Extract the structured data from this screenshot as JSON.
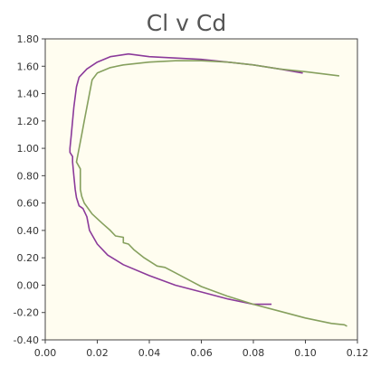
{
  "chart_data": {
    "type": "line",
    "title": "Cl v Cd",
    "xlabel": "",
    "ylabel": "",
    "xlim": [
      0,
      0.12
    ],
    "ylim": [
      -0.4,
      1.8
    ],
    "x_ticks": [
      "0.00",
      "0.02",
      "0.04",
      "0.06",
      "0.08",
      "0.10",
      "0.12"
    ],
    "y_ticks": [
      "1.80",
      "1.60",
      "1.40",
      "1.20",
      "1.00",
      "0.80",
      "0.60",
      "0.40",
      "0.20",
      "0.00",
      "-0.20",
      "-0.40"
    ],
    "grid": false,
    "legend": "none",
    "series": [
      {
        "color": "#8b3a9a",
        "points": [
          [
            0.087,
            -0.14
          ],
          [
            0.08,
            -0.14
          ],
          [
            0.07,
            -0.1
          ],
          [
            0.06,
            -0.05
          ],
          [
            0.05,
            0.0
          ],
          [
            0.04,
            0.07
          ],
          [
            0.03,
            0.15
          ],
          [
            0.024,
            0.22
          ],
          [
            0.02,
            0.3
          ],
          [
            0.017,
            0.4
          ],
          [
            0.016,
            0.5
          ],
          [
            0.0145,
            0.56
          ],
          [
            0.013,
            0.58
          ],
          [
            0.012,
            0.64
          ],
          [
            0.0115,
            0.7
          ],
          [
            0.011,
            0.8
          ],
          [
            0.0105,
            0.9
          ],
          [
            0.0105,
            0.94
          ],
          [
            0.0095,
            0.97
          ],
          [
            0.0095,
            1.0
          ],
          [
            0.01,
            1.1
          ],
          [
            0.011,
            1.3
          ],
          [
            0.012,
            1.45
          ],
          [
            0.013,
            1.52
          ],
          [
            0.016,
            1.58
          ],
          [
            0.02,
            1.63
          ],
          [
            0.025,
            1.67
          ],
          [
            0.032,
            1.69
          ],
          [
            0.04,
            1.67
          ],
          [
            0.05,
            1.66
          ],
          [
            0.06,
            1.65
          ],
          [
            0.07,
            1.63
          ],
          [
            0.08,
            1.61
          ],
          [
            0.09,
            1.58
          ],
          [
            0.099,
            1.55
          ]
        ]
      },
      {
        "color": "#86a05e",
        "points": [
          [
            0.116,
            -0.3
          ],
          [
            0.115,
            -0.29
          ],
          [
            0.11,
            -0.28
          ],
          [
            0.1,
            -0.24
          ],
          [
            0.09,
            -0.19
          ],
          [
            0.08,
            -0.14
          ],
          [
            0.07,
            -0.08
          ],
          [
            0.06,
            -0.01
          ],
          [
            0.056,
            0.03
          ],
          [
            0.05,
            0.09
          ],
          [
            0.046,
            0.13
          ],
          [
            0.043,
            0.14
          ],
          [
            0.038,
            0.2
          ],
          [
            0.034,
            0.26
          ],
          [
            0.032,
            0.3
          ],
          [
            0.03,
            0.31
          ],
          [
            0.03,
            0.35
          ],
          [
            0.027,
            0.36
          ],
          [
            0.025,
            0.4
          ],
          [
            0.022,
            0.45
          ],
          [
            0.018,
            0.52
          ],
          [
            0.015,
            0.6
          ],
          [
            0.014,
            0.65
          ],
          [
            0.0135,
            0.7
          ],
          [
            0.0135,
            0.8
          ],
          [
            0.0135,
            0.85
          ],
          [
            0.012,
            0.9
          ],
          [
            0.013,
            1.0
          ],
          [
            0.014,
            1.1
          ],
          [
            0.015,
            1.2
          ],
          [
            0.016,
            1.3
          ],
          [
            0.017,
            1.4
          ],
          [
            0.018,
            1.5
          ],
          [
            0.02,
            1.55
          ],
          [
            0.025,
            1.59
          ],
          [
            0.03,
            1.61
          ],
          [
            0.04,
            1.63
          ],
          [
            0.05,
            1.64
          ],
          [
            0.06,
            1.64
          ],
          [
            0.07,
            1.63
          ],
          [
            0.08,
            1.61
          ],
          [
            0.09,
            1.58
          ],
          [
            0.1,
            1.56
          ],
          [
            0.113,
            1.53
          ]
        ]
      }
    ]
  }
}
